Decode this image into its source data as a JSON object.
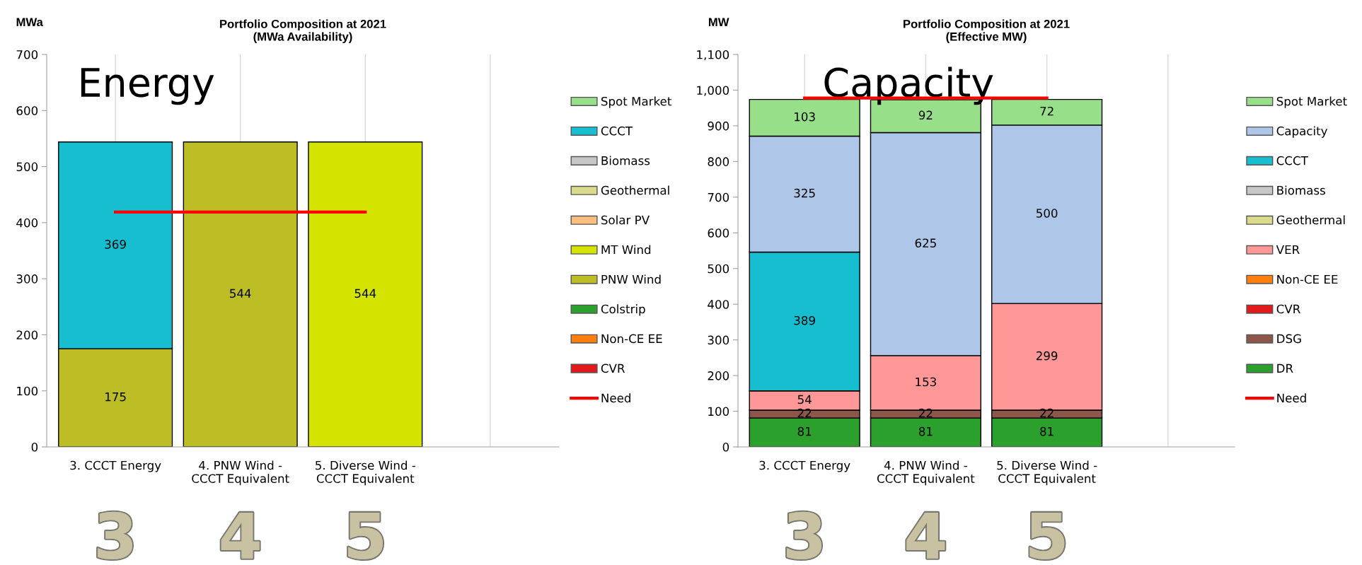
{
  "chart_data": [
    {
      "type": "bar",
      "title": "Portfolio Composition at 2021\n(MWa Availability)",
      "ylabel": "MWa",
      "stacked": true,
      "grid": "x",
      "legend": "right",
      "categories": [
        "3. CCCT Energy",
        "4. PNW Wind - CCCT Equivalent",
        "5. Diverse Wind - CCCT Equivalent",
        null
      ],
      "ylim": [
        0,
        700
      ],
      "yticks": [
        0,
        100,
        200,
        300,
        400,
        500,
        600,
        700
      ],
      "annotations": [
        "Energy",
        "3",
        "4",
        "5"
      ],
      "series": [
        {
          "name": "CVR",
          "color": "#e31a1c",
          "values": [
            null,
            null,
            null,
            null
          ]
        },
        {
          "name": "Non-CE EE",
          "color": "#ff7f0e",
          "values": [
            null,
            null,
            null,
            null
          ]
        },
        {
          "name": "Colstrip",
          "color": "#2ca02c",
          "values": [
            null,
            null,
            null,
            null
          ]
        },
        {
          "name": "PNW Wind",
          "color": "#bdbd25",
          "values": [
            175,
            544,
            null,
            null
          ],
          "value_labels": [
            "175",
            "544",
            null,
            null
          ]
        },
        {
          "name": "MT Wind",
          "color": "#d4e300",
          "values": [
            null,
            null,
            544,
            null
          ],
          "value_labels": [
            null,
            null,
            "544",
            null
          ]
        },
        {
          "name": "Solar PV",
          "color": "#ffbf80",
          "values": [
            null,
            null,
            null,
            null
          ]
        },
        {
          "name": "Geothermal",
          "color": "#dbdb8d",
          "values": [
            null,
            null,
            null,
            null
          ]
        },
        {
          "name": "Biomass",
          "color": "#c7c7c7",
          "values": [
            null,
            null,
            null,
            null
          ]
        },
        {
          "name": "CCCT",
          "color": "#17becf",
          "values": [
            369,
            null,
            null,
            null
          ],
          "value_labels": [
            "369",
            null,
            null,
            null
          ]
        },
        {
          "name": "Spot Market",
          "color": "#98df8a",
          "values": [
            null,
            null,
            null,
            null
          ]
        },
        {
          "name": "Need",
          "type": "line",
          "color": "#ff0000",
          "values": [
            419,
            419,
            419,
            null
          ]
        }
      ]
    },
    {
      "type": "bar",
      "title": "Portfolio Composition at 2021\n(Effective MW)",
      "ylabel": "MW",
      "stacked": true,
      "grid": "x",
      "legend": "right",
      "categories": [
        "3. CCCT Energy",
        "4. PNW Wind - CCCT Equivalent",
        "5. Diverse Wind - CCCT Equivalent",
        null
      ],
      "ylim": [
        0,
        1100
      ],
      "yticks": [
        0,
        100,
        200,
        300,
        400,
        500,
        600,
        700,
        800,
        900,
        {
          "value": 1000,
          "label": "1,000"
        },
        {
          "value": 1100,
          "label": "1,100"
        }
      ],
      "annotations": [
        "Capacity",
        "3",
        "4",
        "5"
      ],
      "series": [
        {
          "name": "DR",
          "color": "#2ca02c",
          "values": [
            81,
            81,
            81,
            null
          ],
          "value_labels": [
            "81",
            "81",
            "81",
            null
          ]
        },
        {
          "name": "DSG",
          "color": "#8c564b",
          "values": [
            22,
            22,
            22,
            null
          ],
          "value_labels": [
            "22",
            "22",
            "22",
            null
          ]
        },
        {
          "name": "CVR",
          "color": "#e31a1c",
          "values": [
            null,
            null,
            null,
            null
          ]
        },
        {
          "name": "Non-CE EE",
          "color": "#ff7f0e",
          "values": [
            null,
            null,
            null,
            null
          ]
        },
        {
          "name": "VER",
          "color": "#ff9896",
          "values": [
            54,
            153,
            299,
            null
          ],
          "value_labels": [
            "54",
            "153",
            "299",
            null
          ]
        },
        {
          "name": "Geothermal",
          "color": "#dbdb8d",
          "values": [
            null,
            null,
            null,
            null
          ]
        },
        {
          "name": "Biomass",
          "color": "#c7c7c7",
          "values": [
            null,
            null,
            null,
            null
          ]
        },
        {
          "name": "CCCT",
          "color": "#17becf",
          "values": [
            389,
            null,
            null,
            null
          ],
          "value_labels": [
            "389",
            null,
            null,
            null
          ]
        },
        {
          "name": "Capacity",
          "color": "#aec7e8",
          "values": [
            325,
            625,
            500,
            null
          ],
          "value_labels": [
            "325",
            "625",
            "500",
            null
          ]
        },
        {
          "name": "Spot Market",
          "color": "#98df8a",
          "values": [
            103,
            92,
            72,
            null
          ],
          "value_labels": [
            "103",
            "92",
            "72",
            null
          ]
        },
        {
          "name": "Need",
          "type": "line",
          "color": "#ff0000",
          "values": [
            978,
            978,
            978,
            null
          ]
        }
      ]
    }
  ]
}
